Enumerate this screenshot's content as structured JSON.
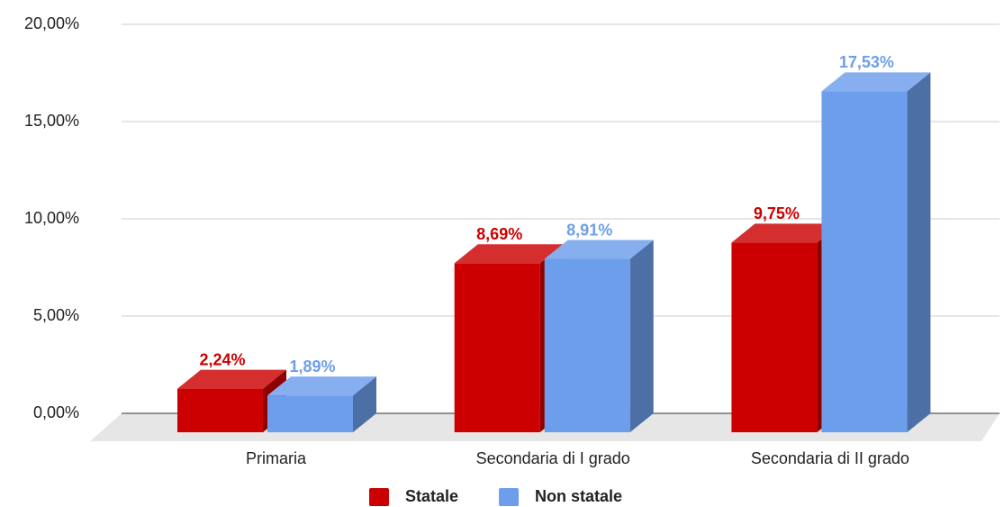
{
  "chart_data": {
    "type": "bar3d",
    "categories": [
      "Primaria",
      "Secondaria di I grado",
      "Secondaria di II grado"
    ],
    "series": [
      {
        "name": "Statale",
        "color": "#cc0000",
        "values": [
          2.24,
          8.69,
          9.75
        ],
        "value_labels": [
          "2,24%",
          "8,69%",
          "9,75%"
        ]
      },
      {
        "name": "Non statale",
        "color": "#6d9eeb",
        "values": [
          1.89,
          8.91,
          17.53
        ],
        "value_labels": [
          "1,89%",
          "8,91%",
          "17,53%"
        ]
      }
    ],
    "ylim": [
      0,
      20
    ],
    "yticks": [
      {
        "value": 0,
        "label": "0,00%"
      },
      {
        "value": 5,
        "label": "5,00%"
      },
      {
        "value": 10,
        "label": "10,00%"
      },
      {
        "value": 15,
        "label": "15,00%"
      },
      {
        "value": 20,
        "label": "20,00%"
      }
    ],
    "grid": true,
    "legend": "bottom"
  }
}
